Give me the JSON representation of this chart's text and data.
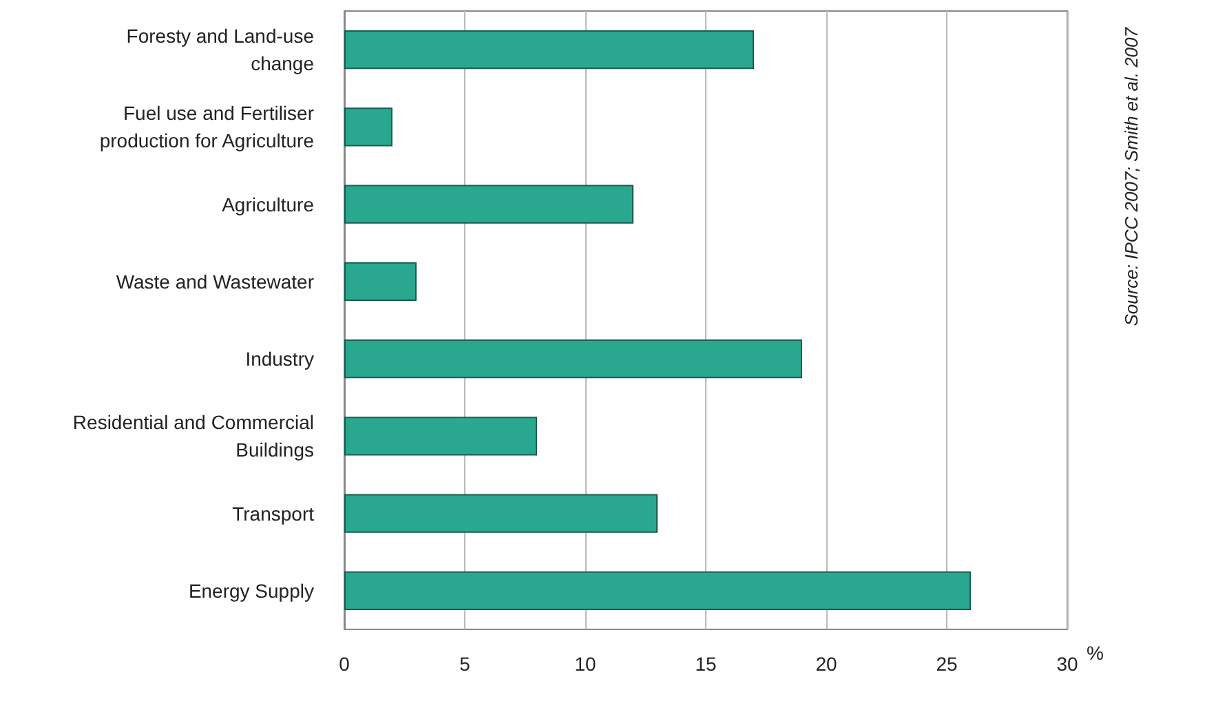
{
  "chart_data": {
    "type": "bar",
    "orientation": "horizontal",
    "categories": [
      "Foresty and Land-use change",
      "Fuel use and Fertiliser production for Agriculture",
      "Agriculture",
      "Waste and Wastewater",
      "Industry",
      "Residential and Commercial Buildings",
      "Transport",
      "Energy Supply"
    ],
    "values": [
      17,
      2,
      12,
      3,
      19,
      8,
      13,
      26
    ],
    "color": "#2aa88f",
    "xlabel": "%",
    "xlim": [
      0,
      30
    ],
    "xticks": [
      0,
      5,
      10,
      15,
      20,
      25,
      30
    ],
    "grid": "x",
    "annotations": [
      "Source: IPCC 2007; Smith et al. 2007"
    ]
  }
}
